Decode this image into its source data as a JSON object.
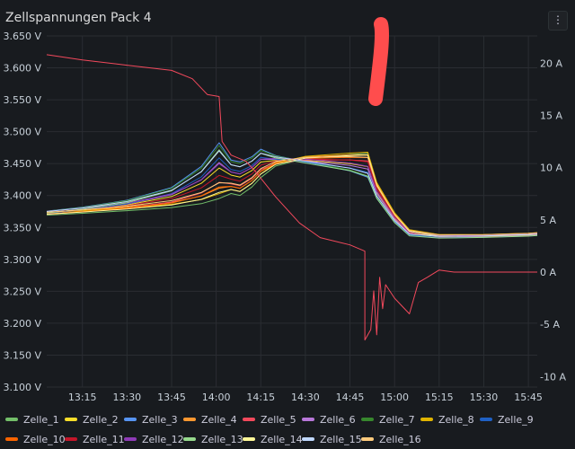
{
  "panel": {
    "title": "Zellspannungen Pack 4",
    "menu_icon": "vertical-ellipsis-icon"
  },
  "chart_data": {
    "type": "line",
    "x_ticks": [
      "13:15",
      "13:30",
      "13:45",
      "14:00",
      "14:15",
      "14:30",
      "14:45",
      "15:00",
      "15:15",
      "15:30",
      "15:45"
    ],
    "x_range": [
      "13:03",
      "15:48"
    ],
    "y_left": {
      "unit": "V",
      "ticks": [
        "3.650 V",
        "3.600 V",
        "3.550 V",
        "3.500 V",
        "3.450 V",
        "3.400 V",
        "3.350 V",
        "3.300 V",
        "3.250 V",
        "3.200 V",
        "3.150 V",
        "3.100 V"
      ],
      "range": [
        3.1,
        3.65
      ]
    },
    "y_right": {
      "unit": "A",
      "ticks": [
        "20 A",
        "15 A",
        "10 A",
        "5 A",
        "0 A",
        "-5 A",
        "-10 A"
      ],
      "range": [
        -11,
        22.6
      ]
    },
    "grid": true,
    "legend_position": "bottom",
    "cell_series": [
      {
        "name": "Zelle_1",
        "color": "#73bf69"
      },
      {
        "name": "Zelle_2",
        "color": "#fade2a"
      },
      {
        "name": "Zelle_3",
        "color": "#5794f2"
      },
      {
        "name": "Zelle_4",
        "color": "#ff9830"
      },
      {
        "name": "Zelle_5",
        "color": "#f2495c"
      },
      {
        "name": "Zelle_6",
        "color": "#b877d9"
      },
      {
        "name": "Zelle_7",
        "color": "#37872d"
      },
      {
        "name": "Zelle_8",
        "color": "#e0b400"
      },
      {
        "name": "Zelle_9",
        "color": "#1f60c4"
      },
      {
        "name": "Zelle_10",
        "color": "#fa6400"
      },
      {
        "name": "Zelle_11",
        "color": "#c4162a"
      },
      {
        "name": "Zelle_12",
        "color": "#8f3bb8"
      },
      {
        "name": "Zelle_13",
        "color": "#96d98d"
      },
      {
        "name": "Zelle_14",
        "color": "#fff899"
      },
      {
        "name": "Zelle_15",
        "color": "#c0d8ff"
      },
      {
        "name": "Zelle_16",
        "color": "#ffcb7d"
      }
    ],
    "cell_profiles": {
      "x": [
        "13:03",
        "13:15",
        "13:30",
        "13:45",
        "13:55",
        "14:01",
        "14:05",
        "14:08",
        "14:12",
        "14:15",
        "14:20",
        "14:30",
        "14:45",
        "14:51",
        "14:54",
        "15:00",
        "15:05",
        "15:15",
        "15:30",
        "15:45",
        "15:48"
      ],
      "low_group": [
        3.371,
        3.374,
        3.378,
        3.383,
        3.389,
        3.397,
        3.405,
        3.402,
        3.415,
        3.43,
        3.448,
        3.46,
        3.466,
        3.468,
        3.42,
        3.372,
        3.345,
        3.337,
        3.337,
        3.339,
        3.34
      ],
      "high_group": [
        3.375,
        3.381,
        3.392,
        3.412,
        3.445,
        3.482,
        3.455,
        3.452,
        3.46,
        3.472,
        3.462,
        3.452,
        3.438,
        3.428,
        3.395,
        3.358,
        3.338,
        3.335,
        3.336,
        3.338,
        3.339
      ]
    },
    "current_series": {
      "name": "current",
      "color": "#f2495c",
      "x": [
        "13:03",
        "13:15",
        "13:30",
        "13:45",
        "13:52",
        "13:57",
        "14:01",
        "14:02",
        "14:05",
        "14:10",
        "14:13",
        "14:20",
        "14:28",
        "14:35",
        "14:45",
        "14:50",
        "14:50",
        "14:52",
        "14:53",
        "14:54",
        "14:55",
        "14:56",
        "14:57",
        "15:00",
        "15:05",
        "15:08",
        "15:11",
        "15:15",
        "15:20",
        "15:30",
        "15:48"
      ],
      "y": [
        20.8,
        20.3,
        19.8,
        19.3,
        18.5,
        17.0,
        16.8,
        12.5,
        11.2,
        10.6,
        9.7,
        7.2,
        4.7,
        3.3,
        2.6,
        2.0,
        -6.5,
        -5.5,
        -1.8,
        -6.0,
        -0.5,
        -3.5,
        -1.2,
        -2.5,
        -4.0,
        -1.0,
        -0.5,
        0.2,
        0.0,
        0.0,
        0.0
      ]
    }
  },
  "legend": [
    [
      {
        "label": "Zelle_1",
        "color": "#73bf69"
      },
      {
        "label": "Zelle_2",
        "color": "#fade2a"
      },
      {
        "label": "Zelle_3",
        "color": "#5794f2"
      },
      {
        "label": "Zelle_4",
        "color": "#ff9830"
      },
      {
        "label": "Zelle_5",
        "color": "#f2495c"
      },
      {
        "label": "Zelle_6",
        "color": "#b877d9"
      },
      {
        "label": "Zelle_7",
        "color": "#37872d"
      },
      {
        "label": "Zelle_8",
        "color": "#e0b400"
      },
      {
        "label": "Zelle_9",
        "color": "#1f60c4"
      }
    ],
    [
      {
        "label": "Zelle_10",
        "color": "#fa6400"
      },
      {
        "label": "Zelle_11",
        "color": "#c4162a"
      },
      {
        "label": "Zelle_12",
        "color": "#8f3bb8"
      },
      {
        "label": "Zelle_13",
        "color": "#96d98d"
      },
      {
        "label": "Zelle_14",
        "color": "#fff899"
      },
      {
        "label": "Zelle_15",
        "color": "#c0d8ff"
      },
      {
        "label": "Zelle_16",
        "color": "#ffcb7d"
      }
    ]
  ]
}
